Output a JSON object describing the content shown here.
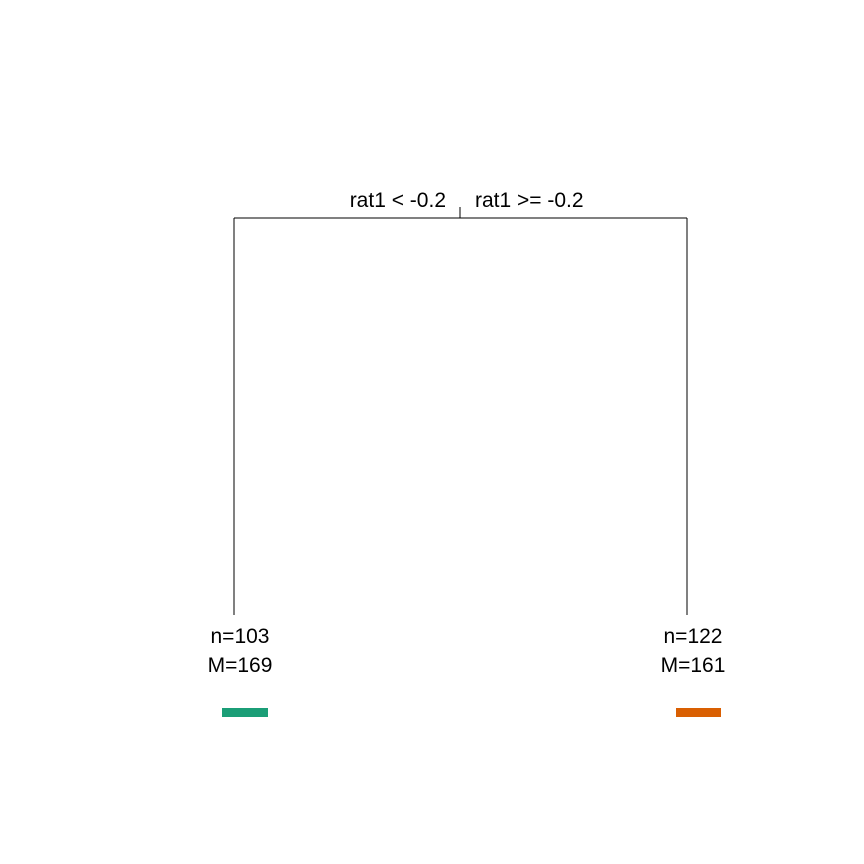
{
  "tree": {
    "split": {
      "left_label": "rat1 < -0.2",
      "right_label": "rat1 >= -0.2"
    },
    "leaves": [
      {
        "n_label": "n=103",
        "m_label": "M=169",
        "color": "#1b9e77"
      },
      {
        "n_label": "n=122",
        "m_label": "M=161",
        "color": "#d95f02"
      }
    ]
  }
}
